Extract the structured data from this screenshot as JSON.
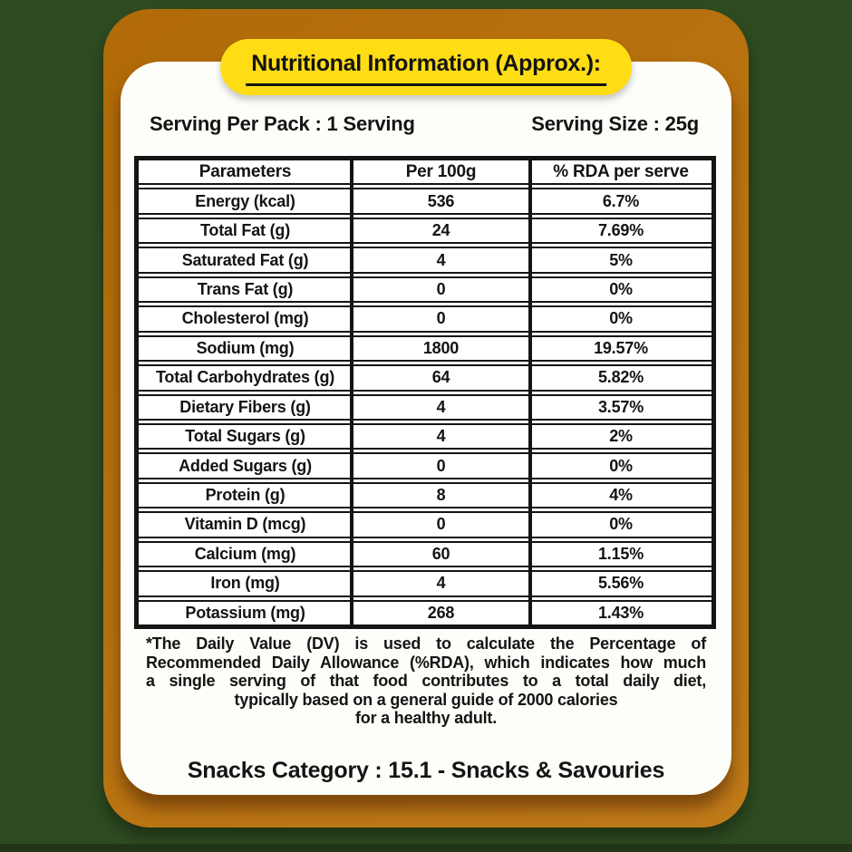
{
  "label": {
    "title": "Nutritional Information (Approx.):"
  },
  "serving": {
    "per_pack": "Serving Per Pack : 1 Serving",
    "size": "Serving Size : 25g"
  },
  "table": {
    "headers": [
      "Parameters",
      "Per 100g",
      "% RDA per serve"
    ],
    "rows": [
      {
        "parameter": "Energy (kcal)",
        "per_100g": "536",
        "rda_per_serve": "6.7%"
      },
      {
        "parameter": "Total Fat (g)",
        "per_100g": "24",
        "rda_per_serve": "7.69%"
      },
      {
        "parameter": "Saturated Fat (g)",
        "per_100g": "4",
        "rda_per_serve": "5%"
      },
      {
        "parameter": "Trans Fat (g)",
        "per_100g": "0",
        "rda_per_serve": "0%"
      },
      {
        "parameter": "Cholesterol (mg)",
        "per_100g": "0",
        "rda_per_serve": "0%"
      },
      {
        "parameter": "Sodium (mg)",
        "per_100g": "1800",
        "rda_per_serve": "19.57%"
      },
      {
        "parameter": "Total Carbohydrates (g)",
        "per_100g": "64",
        "rda_per_serve": "5.82%"
      },
      {
        "parameter": "Dietary Fibers (g)",
        "per_100g": "4",
        "rda_per_serve": "3.57%"
      },
      {
        "parameter": "Total Sugars (g)",
        "per_100g": "4",
        "rda_per_serve": "2%"
      },
      {
        "parameter": "Added Sugars (g)",
        "per_100g": "0",
        "rda_per_serve": "0%"
      },
      {
        "parameter": "Protein (g)",
        "per_100g": "8",
        "rda_per_serve": "4%"
      },
      {
        "parameter": "Vitamin D (mcg)",
        "per_100g": "0",
        "rda_per_serve": "0%"
      },
      {
        "parameter": "Calcium (mg)",
        "per_100g": "60",
        "rda_per_serve": "1.15%"
      },
      {
        "parameter": "Iron (mg)",
        "per_100g": "4",
        "rda_per_serve": "5.56%"
      },
      {
        "parameter": "Potassium (mg)",
        "per_100g": "268",
        "rda_per_serve": "1.43%"
      }
    ]
  },
  "footnote": {
    "lines": [
      "*The Daily Value (DV) is used to calculate the Percentage of",
      "Recommended Daily Allowance (%RDA), which indicates how much",
      "a single serving of that food contributes to a total daily diet,",
      "typically based on a general guide of 2000 calories",
      "for a healthy adult."
    ]
  },
  "category": "Snacks Category : 15.1 - Snacks & Savouries",
  "colors": {
    "background_green": "#2e4b21",
    "panel_orange": "#bc7108",
    "pill_yellow": "#ffdd15",
    "card_white": "#fdfdf9",
    "text_black": "#141414"
  }
}
